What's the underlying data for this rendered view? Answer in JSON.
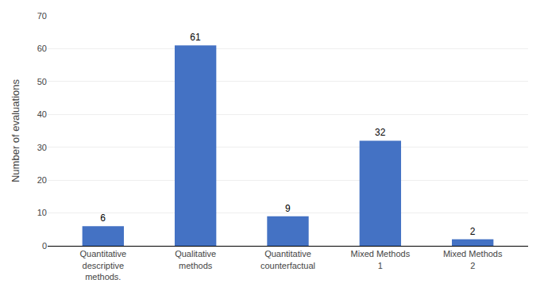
{
  "chart_data": {
    "type": "bar",
    "ylabel": "Number of evaluations",
    "categories": [
      "Quantitative\ndescriptive\nmethods.",
      "Qualitative\nmethods",
      "Quantitative\ncounterfactual",
      "Mixed Methods\n1",
      "Mixed Methods\n2"
    ],
    "values": [
      6,
      61,
      9,
      32,
      2
    ],
    "color": "#4472C4",
    "ylim": [
      0,
      70
    ],
    "yticks": [
      0,
      10,
      20,
      30,
      40,
      50,
      60,
      70
    ],
    "grid": true,
    "data_labels": true
  }
}
